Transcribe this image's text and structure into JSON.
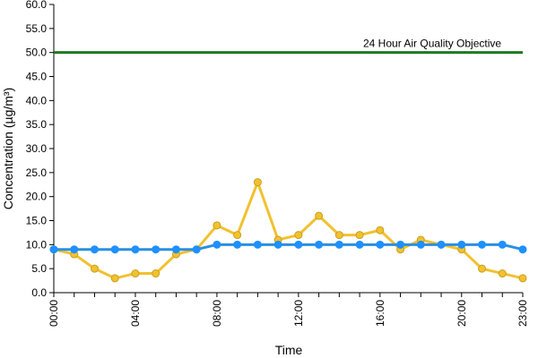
{
  "chart_data": {
    "type": "line",
    "xlabel": "Time",
    "ylabel": "Concentration (µg/m³)",
    "ylim": [
      0,
      60
    ],
    "yticks": [
      "0.0",
      "5.0",
      "10.0",
      "15.0",
      "20.0",
      "25.0",
      "30.0",
      "35.0",
      "40.0",
      "45.0",
      "50.0",
      "55.0",
      "60.0"
    ],
    "x": [
      0,
      1,
      2,
      3,
      4,
      5,
      6,
      7,
      8,
      9,
      10,
      11,
      12,
      13,
      14,
      15,
      16,
      17,
      18,
      19,
      20,
      21,
      22,
      23
    ],
    "xticks": [
      {
        "x": 0,
        "label": "00:00"
      },
      {
        "x": 4,
        "label": "04:00"
      },
      {
        "x": 8,
        "label": "08:00"
      },
      {
        "x": 12,
        "label": "12:00"
      },
      {
        "x": 16,
        "label": "16:00"
      },
      {
        "x": 20,
        "label": "20:00"
      },
      {
        "x": 23,
        "label": "23:00"
      }
    ],
    "grid": false,
    "series": [
      {
        "color": "#f2c12e",
        "marker_fill": "#f2c12e",
        "marker_stroke": "#c9a020",
        "values": [
          9,
          8,
          5,
          3,
          4,
          4,
          8,
          9,
          14,
          12,
          23,
          11,
          12,
          16,
          12,
          12,
          13,
          9,
          11,
          10,
          9,
          5,
          4,
          3
        ]
      },
      {
        "color": "#2a8fe0",
        "marker_fill": "#1e90ff",
        "marker_stroke": "#1e90ff",
        "values": [
          9,
          9,
          9,
          9,
          9,
          9,
          9,
          9,
          10,
          10,
          10,
          10,
          10,
          10,
          10,
          10,
          10,
          10,
          10,
          10,
          10,
          10,
          10,
          9
        ]
      }
    ],
    "objective": {
      "value": 50,
      "label": "24 Hour Air Quality Objective",
      "color": "#1e7a1e"
    }
  }
}
